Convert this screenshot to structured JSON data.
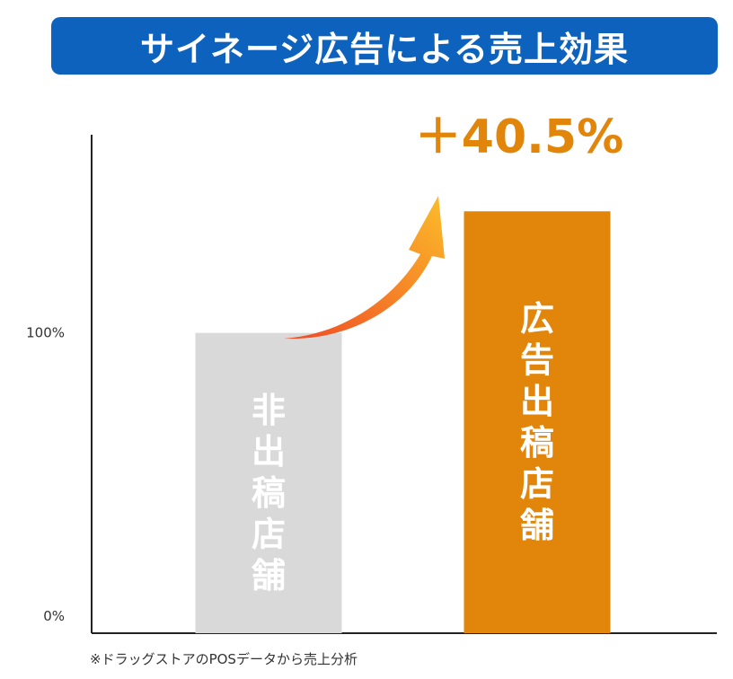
{
  "title": "サイネージ広告による売上効果",
  "note": "※ドラッグストアのPOSデータから売上分析",
  "chart_data": {
    "type": "bar",
    "categories": [
      "非出稿店舗",
      "広告出稿店舗"
    ],
    "values": [
      100,
      140.5
    ],
    "ylim": [
      0,
      166
    ],
    "yticks": [
      {
        "value": 0,
        "label": "0%"
      },
      {
        "value": 100,
        "label": "100%"
      }
    ],
    "annotation": "＋40.5%",
    "grid": false,
    "colors": [
      "#d9d9d9",
      "#e2860b"
    ],
    "annotation_color": "#e2860b",
    "arrow_gradient": [
      "#f04a24",
      "#fbbd2a"
    ]
  }
}
